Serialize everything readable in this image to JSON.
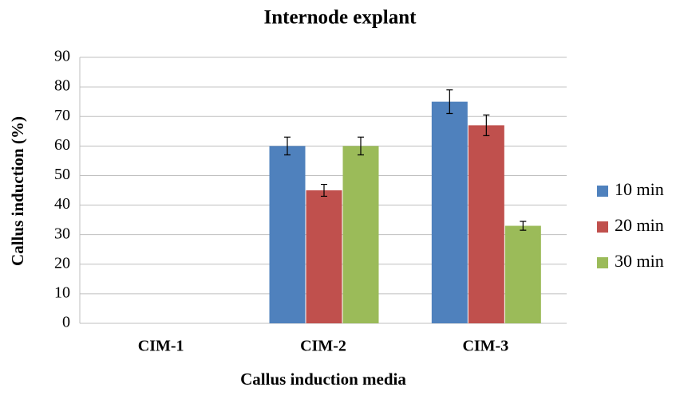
{
  "chart_data": {
    "type": "bar",
    "title": "Internode explant",
    "x_label": "Callus induction media",
    "y_label": "Callus induction (%)",
    "categories": [
      "CIM-1",
      "CIM-2",
      "CIM-3"
    ],
    "series": [
      {
        "name": "10 min",
        "color": "#4f81bd",
        "values": [
          0,
          60,
          75
        ],
        "errors": [
          null,
          3,
          4
        ]
      },
      {
        "name": "20 min",
        "color": "#c0504d",
        "values": [
          0,
          45,
          67
        ],
        "errors": [
          null,
          2,
          3.5
        ]
      },
      {
        "name": "30 min",
        "color": "#9bbb59",
        "values": [
          0,
          60,
          33
        ],
        "errors": [
          null,
          3,
          1.5
        ]
      }
    ],
    "ylim": [
      0,
      90
    ],
    "yticks": [
      0,
      10,
      20,
      30,
      40,
      50,
      60,
      70,
      80,
      90
    ],
    "grid": true,
    "legend": "right"
  }
}
